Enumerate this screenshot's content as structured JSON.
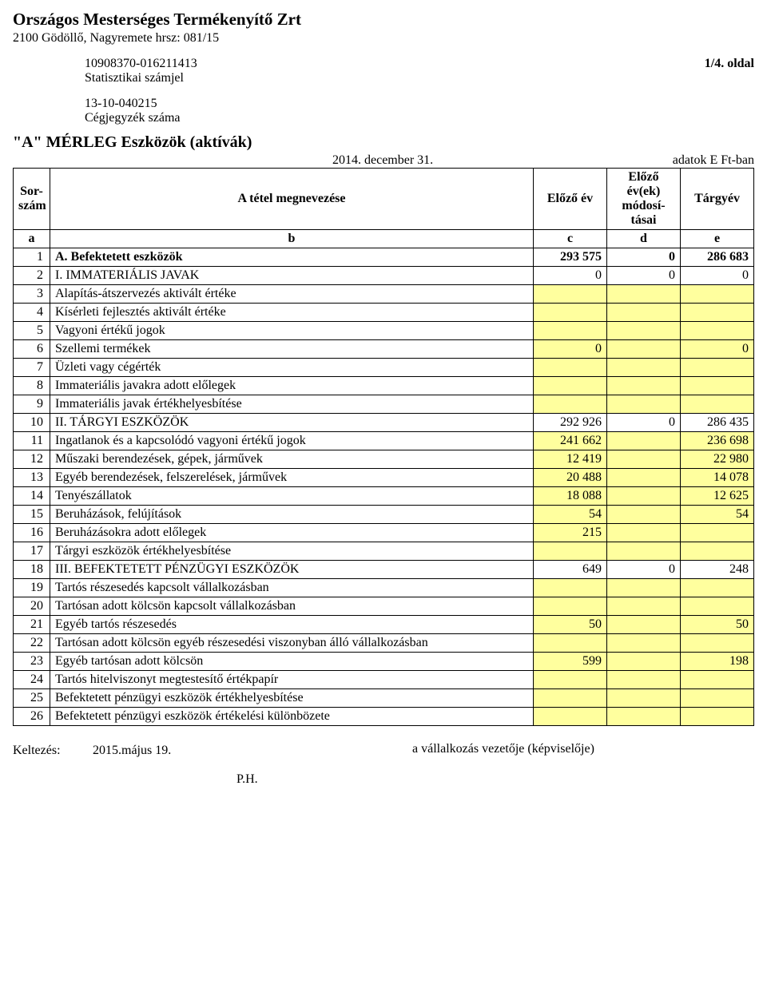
{
  "company_name": "Országos Mesterséges Termékenyítő Zrt",
  "company_address": "2100 Gödöllő, Nagyremete hrsz: 081/15",
  "stat_code": "10908370-016211413",
  "stat_code_label": "Statisztikai számjel",
  "page_label": "1/4. oldal",
  "reg_code": "13-10-040215",
  "reg_code_label": "Cégjegyzék száma",
  "form_title": "\"A\" MÉRLEG Eszközök (aktívák)",
  "as_of_date": "2014. december 31.",
  "units_label": "adatok E Ft-ban",
  "colhead": {
    "sorszam": "Sor-\nszám",
    "megnevezes": "A tétel megnevezése",
    "elozo_ev": "Előző év",
    "elozo_ev_mod": "Előző év(ek) módosí-tásai",
    "targyev": "Tárgyév",
    "a": "a",
    "b": "b",
    "c": "c",
    "d": "d",
    "e": "e"
  },
  "rows": [
    {
      "n": "1",
      "label": "A. Befektetett eszközök",
      "bold": true,
      "c": "293 575",
      "d": "0",
      "e": "286 683"
    },
    {
      "n": "2",
      "label": "I. IMMATERIÁLIS JAVAK",
      "c": "0",
      "d": "0",
      "e": "0"
    },
    {
      "n": "3",
      "label": "Alapítás-átszervezés aktivált értéke",
      "c_hl": true,
      "d_hl": true,
      "e_hl": true
    },
    {
      "n": "4",
      "label": "Kísérleti fejlesztés aktivált értéke",
      "c_hl": true,
      "d_hl": true,
      "e_hl": true
    },
    {
      "n": "5",
      "label": "Vagyoni értékű jogok",
      "c_hl": true,
      "d_hl": true,
      "e_hl": true
    },
    {
      "n": "6",
      "label": "Szellemi termékek",
      "c": "0",
      "c_hl": true,
      "d_hl": true,
      "e": "0",
      "e_hl": true
    },
    {
      "n": "7",
      "label": "Üzleti vagy cégérték",
      "c_hl": true,
      "d_hl": true,
      "e_hl": true
    },
    {
      "n": "8",
      "label": "Immateriális javakra adott előlegek",
      "c_hl": true,
      "d_hl": true,
      "e_hl": true
    },
    {
      "n": "9",
      "label": "Immateriális javak értékhelyesbítése",
      "c_hl": true,
      "d_hl": true,
      "e_hl": true
    },
    {
      "n": "10",
      "label": "II. TÁRGYI ESZKÖZÖK",
      "c": "292 926",
      "d": "0",
      "e": "286 435"
    },
    {
      "n": "11",
      "label": "Ingatlanok és a kapcsolódó vagyoni értékű jogok",
      "c": "241 662",
      "c_hl": true,
      "d_hl": true,
      "e": "236 698",
      "e_hl": true
    },
    {
      "n": "12",
      "label": "Műszaki berendezések, gépek, járművek",
      "c": "12 419",
      "c_hl": true,
      "d_hl": true,
      "e": "22 980",
      "e_hl": true
    },
    {
      "n": "13",
      "label": "Egyéb berendezések, felszerelések, járművek",
      "c": "20 488",
      "c_hl": true,
      "d_hl": true,
      "e": "14 078",
      "e_hl": true
    },
    {
      "n": "14",
      "label": "Tenyészállatok",
      "c": "18 088",
      "c_hl": true,
      "d_hl": true,
      "e": "12 625",
      "e_hl": true
    },
    {
      "n": "15",
      "label": "Beruházások, felújítások",
      "c": "54",
      "c_hl": true,
      "d_hl": true,
      "e": "54",
      "e_hl": true
    },
    {
      "n": "16",
      "label": "Beruházásokra adott előlegek",
      "c": "215",
      "c_hl": true,
      "d_hl": true,
      "e_hl": true
    },
    {
      "n": "17",
      "label": "Tárgyi eszközök értékhelyesbítése",
      "c_hl": true,
      "d_hl": true,
      "e_hl": true
    },
    {
      "n": "18",
      "label": "III. BEFEKTETETT PÉNZÜGYI ESZKÖZÖK",
      "c": "649",
      "d": "0",
      "e": "248"
    },
    {
      "n": "19",
      "label": "Tartós részesedés kapcsolt vállalkozásban",
      "c_hl": true,
      "d_hl": true,
      "e_hl": true
    },
    {
      "n": "20",
      "label": "Tartósan adott kölcsön  kapcsolt vállalkozásban",
      "c_hl": true,
      "d_hl": true,
      "e_hl": true
    },
    {
      "n": "21",
      "label": "Egyéb tartós részesedés",
      "c": "50",
      "c_hl": true,
      "d_hl": true,
      "e": "50",
      "e_hl": true
    },
    {
      "n": "22",
      "label": "Tartósan adott kölcsön egyéb részesedési viszonyban álló vállalkozásban",
      "tall": true,
      "c_hl": true,
      "d_hl": true,
      "e_hl": true
    },
    {
      "n": "23",
      "label": "Egyéb tartósan adott kölcsön",
      "c": "599",
      "c_hl": true,
      "d_hl": true,
      "e": "198",
      "e_hl": true
    },
    {
      "n": "24",
      "label": "Tartós hitelviszonyt megtestesítő értékpapír",
      "c_hl": true,
      "d_hl": true,
      "e_hl": true
    },
    {
      "n": "25",
      "label": "Befektetett pénzügyi eszközök értékhelyesbítése",
      "c_hl": true,
      "d_hl": true,
      "e_hl": true
    },
    {
      "n": "26",
      "label": "Befektetett pénzügyi eszközök értékelési különbözete",
      "c_hl": true,
      "d_hl": true,
      "e_hl": true
    }
  ],
  "footer": {
    "dated_label": "Keltezés:",
    "dated_value": "2015.május 19.",
    "ph": "P.H.",
    "signatory": "a vállalkozás vezetője (képviselője)"
  },
  "colors": {
    "highlight": "#ffff9e",
    "border": "#000000",
    "background": "#ffffff"
  }
}
